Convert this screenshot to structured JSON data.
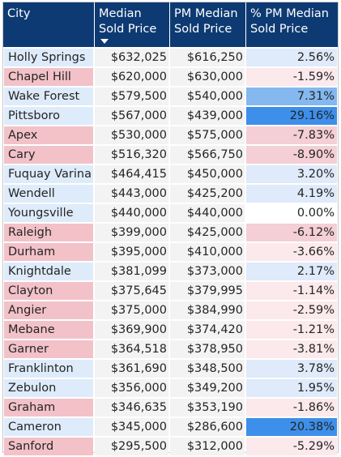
{
  "table": {
    "headers": [
      "City",
      "Median Sold Price",
      "PM Median Sold Price",
      "% PM Median Sold Price"
    ],
    "sorted_column": "Median Sold Price",
    "colors": {
      "header_bg": "#0e3a73",
      "header_text": "#ffffff",
      "city_positive": "#deebfa",
      "city_negative": "#f2c2c8",
      "pct_positive_strong": "#3d8fea",
      "pct_positive_mid": "#84b8ef",
      "pct_positive_light": "#dfeafa",
      "pct_negative_light": "#fbe9ec",
      "pct_negative_mid": "#f4cfd5",
      "pct_zero": "#ffffff"
    },
    "rows": [
      {
        "city": "Holly Springs",
        "median": "$632,025",
        "pm_median": "$616,250",
        "pct": "2.56%",
        "pct_value": 2.56
      },
      {
        "city": "Chapel Hill",
        "median": "$620,000",
        "pm_median": "$630,000",
        "pct": "-1.59%",
        "pct_value": -1.59
      },
      {
        "city": "Wake Forest",
        "median": "$579,500",
        "pm_median": "$540,000",
        "pct": "7.31%",
        "pct_value": 7.31
      },
      {
        "city": "Pittsboro",
        "median": "$567,000",
        "pm_median": "$439,000",
        "pct": "29.16%",
        "pct_value": 29.16
      },
      {
        "city": "Apex",
        "median": "$530,000",
        "pm_median": "$575,000",
        "pct": "-7.83%",
        "pct_value": -7.83
      },
      {
        "city": "Cary",
        "median": "$516,320",
        "pm_median": "$566,750",
        "pct": "-8.90%",
        "pct_value": -8.9
      },
      {
        "city": "Fuquay Varina",
        "median": "$464,415",
        "pm_median": "$450,000",
        "pct": "3.20%",
        "pct_value": 3.2
      },
      {
        "city": "Wendell",
        "median": "$443,000",
        "pm_median": "$425,200",
        "pct": "4.19%",
        "pct_value": 4.19
      },
      {
        "city": "Youngsville",
        "median": "$440,000",
        "pm_median": "$440,000",
        "pct": "0.00%",
        "pct_value": 0
      },
      {
        "city": "Raleigh",
        "median": "$399,000",
        "pm_median": "$425,000",
        "pct": "-6.12%",
        "pct_value": -6.12
      },
      {
        "city": "Durham",
        "median": "$395,000",
        "pm_median": "$410,000",
        "pct": "-3.66%",
        "pct_value": -3.66
      },
      {
        "city": "Knightdale",
        "median": "$381,099",
        "pm_median": "$373,000",
        "pct": "2.17%",
        "pct_value": 2.17
      },
      {
        "city": "Clayton",
        "median": "$375,645",
        "pm_median": "$379,995",
        "pct": "-1.14%",
        "pct_value": -1.14
      },
      {
        "city": "Angier",
        "median": "$375,000",
        "pm_median": "$384,990",
        "pct": "-2.59%",
        "pct_value": -2.59
      },
      {
        "city": "Mebane",
        "median": "$369,900",
        "pm_median": "$374,420",
        "pct": "-1.21%",
        "pct_value": -1.21
      },
      {
        "city": "Garner",
        "median": "$364,518",
        "pm_median": "$378,950",
        "pct": "-3.81%",
        "pct_value": -3.81
      },
      {
        "city": "Franklinton",
        "median": "$361,690",
        "pm_median": "$348,500",
        "pct": "3.78%",
        "pct_value": 3.78
      },
      {
        "city": "Zebulon",
        "median": "$356,000",
        "pm_median": "$349,200",
        "pct": "1.95%",
        "pct_value": 1.95
      },
      {
        "city": "Graham",
        "median": "$346,635",
        "pm_median": "$353,190",
        "pct": "-1.86%",
        "pct_value": -1.86
      },
      {
        "city": "Cameron",
        "median": "$345,000",
        "pm_median": "$286,600",
        "pct": "20.38%",
        "pct_value": 20.38
      },
      {
        "city": "Sanford",
        "median": "$295,500",
        "pm_median": "$312,000",
        "pct": "-5.29%",
        "pct_value": -5.29
      }
    ]
  }
}
